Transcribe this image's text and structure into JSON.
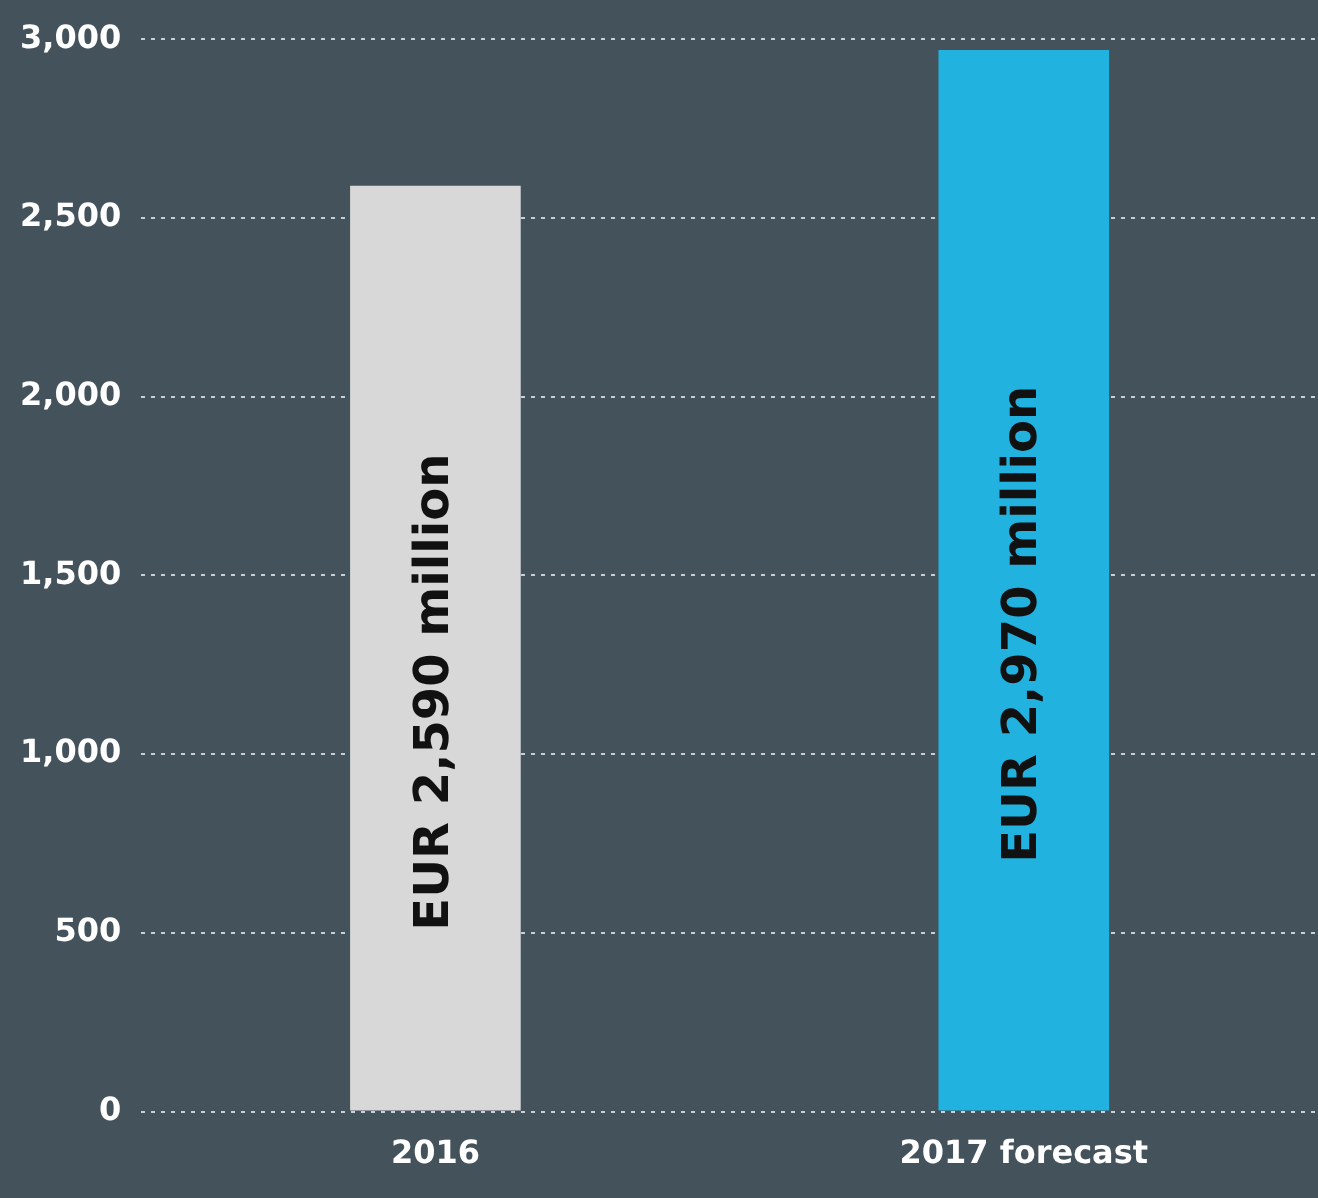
{
  "chart_data": {
    "type": "bar",
    "categories": [
      "2016",
      "2017 forecast"
    ],
    "values": [
      2590,
      2970
    ],
    "colors": [
      "#d8d8d8",
      "#22b2df"
    ],
    "value_labels": [
      "EUR 2,590 million",
      "EUR 2,970 million"
    ],
    "ylim": [
      0,
      3000
    ],
    "yticks": [
      0,
      500,
      {
        "value": 1000,
        "label": "1,000"
      },
      {
        "value": 1500,
        "label": "1,500"
      },
      {
        "value": 2000,
        "label": "2,000"
      },
      {
        "value": 2500,
        "label": "2,500"
      },
      {
        "value": 3000,
        "label": "3,000"
      }
    ],
    "grid": "y"
  }
}
